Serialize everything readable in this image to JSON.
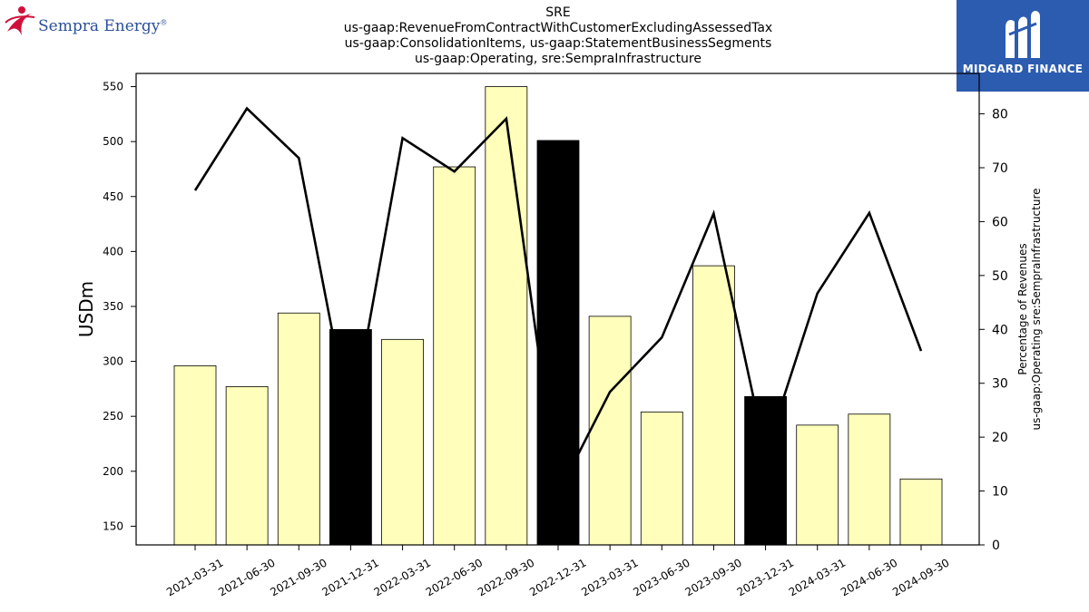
{
  "header": {
    "title_lines": [
      "SRE",
      "us-gaap:RevenueFromContractWithCustomerExcludingAssessedTax",
      "us-gaap:ConsolidationItems, us-gaap:StatementBusinessSegments",
      "us-gaap:Operating, sre:SempraInfrastructure"
    ]
  },
  "logos": {
    "left_text": "Sempra Energy",
    "left_registered": "®",
    "right_text": "MIDGARD FINANCE"
  },
  "colors": {
    "bar_fill": "#ffffbb",
    "bar_highlight": "#000000",
    "line": "#000000",
    "brand_blue": "#2c5caf",
    "sempra_red": "#d0103a"
  },
  "chart_data": {
    "type": "bar",
    "categories": [
      "2021-03-31",
      "2021-06-30",
      "2021-09-30",
      "2021-12-31",
      "2022-03-31",
      "2022-06-30",
      "2022-09-30",
      "2022-12-31",
      "2023-03-31",
      "2023-06-30",
      "2023-09-30",
      "2023-12-31",
      "2024-03-31",
      "2024-06-30",
      "2024-09-30"
    ],
    "series": [
      {
        "name": "",
        "axis": "left",
        "kind": "bar",
        "values": [
          296,
          277,
          344,
          329,
          320,
          477,
          550,
          501,
          341,
          254,
          387,
          268,
          242,
          252,
          193
        ],
        "highlight": [
          false,
          false,
          false,
          true,
          false,
          false,
          false,
          true,
          false,
          false,
          false,
          true,
          false,
          false,
          false
        ]
      },
      {
        "name": "",
        "axis": "right",
        "kind": "line",
        "values": [
          65.8,
          81.0,
          71.8,
          22.0,
          75.5,
          69.3,
          79.1,
          9.5,
          28.4,
          38.5,
          61.5,
          17.0,
          46.7,
          61.6,
          36.0
        ]
      }
    ],
    "ylabel": "USDm",
    "y2label_lines": [
      "Percentage of Revenues",
      "us-gaap:Operating sre:SempraInfrastructure"
    ],
    "ylim": [
      133,
      562
    ],
    "y2lim": [
      0,
      87.5
    ],
    "yticks": [
      150,
      200,
      250,
      300,
      350,
      400,
      450,
      500,
      550
    ],
    "y2ticks": [
      0,
      10,
      20,
      30,
      40,
      50,
      60,
      70,
      80
    ],
    "grid": false,
    "legend": "none"
  }
}
